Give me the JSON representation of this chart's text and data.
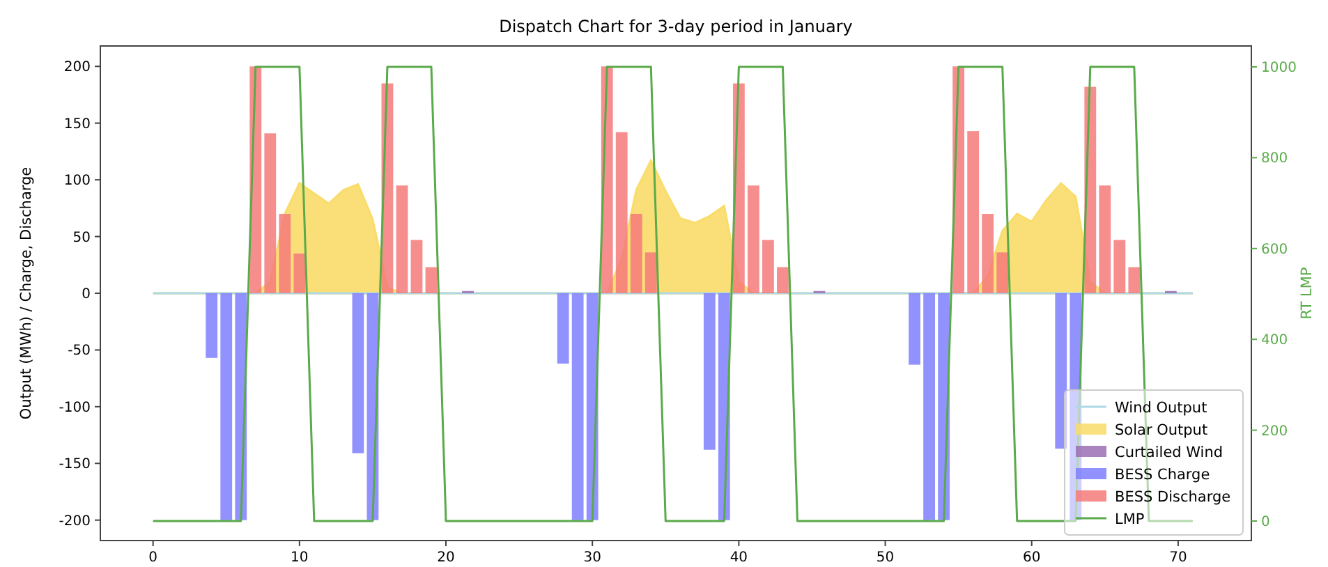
{
  "chart_data": {
    "type": "bar",
    "title": "Dispatch Chart for 3-day period in January",
    "ylabel": "Output (MWh) / Charge, Discharge",
    "y2label": "RT LMP",
    "xlim": [
      -3.6,
      75
    ],
    "xticks": [
      0,
      10,
      20,
      30,
      40,
      50,
      60,
      70
    ],
    "ylim": [
      -218,
      218
    ],
    "yticks": [
      -200,
      -150,
      -100,
      -50,
      0,
      50,
      100,
      150,
      200
    ],
    "y2lim": [
      -43,
      1046
    ],
    "y2ticks": [
      0,
      200,
      400,
      600,
      800,
      1000
    ],
    "grid": false,
    "legend": "bottom right",
    "series": [
      {
        "name": "Wind Output",
        "type": "line",
        "color": "#add8e6",
        "x": [
          0,
          71
        ],
        "values": [
          0,
          0
        ]
      },
      {
        "name": "Solar Output",
        "type": "area",
        "color": "#f9dc6a",
        "x": [
          0,
          7,
          8,
          9,
          10,
          11,
          12,
          13,
          14,
          15,
          16,
          17,
          31,
          32,
          33,
          34,
          35,
          36,
          37,
          38,
          39,
          40,
          41,
          56,
          57,
          58,
          59,
          60,
          61,
          62,
          63,
          64,
          65,
          71
        ],
        "values": [
          0,
          0,
          10,
          70,
          97,
          88,
          79,
          91,
          96,
          65,
          5,
          0,
          0,
          30,
          91,
          117,
          90,
          66,
          62,
          68,
          77,
          10,
          0,
          0,
          15,
          55,
          70,
          63,
          82,
          97,
          85,
          10,
          0,
          0
        ]
      },
      {
        "name": "Curtailed Wind",
        "type": "bar",
        "color": "#9b6fb3",
        "x": [
          21.5,
          45.5,
          69.5
        ],
        "values": [
          2,
          2,
          2
        ]
      },
      {
        "name": "BESS Charge",
        "type": "bar",
        "color": "#7f7fff",
        "x": [
          4,
          5,
          6,
          14,
          15,
          28,
          29,
          30,
          38,
          39,
          52,
          53,
          54,
          62,
          63
        ],
        "values": [
          -57,
          -200,
          -200,
          -141,
          -200,
          -62,
          -200,
          -200,
          -138,
          -200,
          -63,
          -200,
          -200,
          -137,
          -200
        ]
      },
      {
        "name": "BESS Discharge",
        "color": "#f47a7a",
        "x": [
          7,
          8,
          9,
          10,
          16,
          17,
          18,
          19,
          31,
          32,
          33,
          34,
          40,
          41,
          42,
          43,
          55,
          56,
          57,
          58,
          64,
          65,
          66,
          67
        ],
        "values": [
          200,
          141,
          70,
          35,
          185,
          95,
          47,
          23,
          200,
          142,
          70,
          36,
          185,
          95,
          47,
          23,
          200,
          143,
          70,
          36,
          182,
          95,
          47,
          23
        ]
      },
      {
        "name": "LMP",
        "type": "line",
        "axis": "y2",
        "color": "#5aaa4a",
        "x": [
          0,
          6,
          7,
          10,
          11,
          15,
          16,
          19,
          20,
          30,
          31,
          34,
          35,
          39,
          40,
          43,
          44,
          54,
          55,
          58,
          59,
          63,
          64,
          67,
          68,
          71
        ],
        "values": [
          0,
          0,
          1000,
          1000,
          0,
          0,
          1000,
          1000,
          0,
          0,
          1000,
          1000,
          0,
          0,
          1000,
          1000,
          0,
          0,
          1000,
          1000,
          0,
          0,
          1000,
          1000,
          0,
          0
        ]
      }
    ]
  }
}
